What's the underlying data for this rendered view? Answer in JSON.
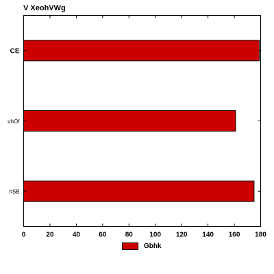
{
  "chart_data": {
    "type": "bar",
    "orientation": "horizontal",
    "title": "V XeohVWg",
    "categories": [
      "CE",
      "uhOf",
      "hSB"
    ],
    "series": [
      {
        "name": "Gbhk",
        "values": [
          179,
          161,
          175
        ],
        "color": "#cc0000"
      }
    ],
    "xlim": [
      0,
      180
    ],
    "xticks": [
      0,
      20,
      40,
      60,
      80,
      100,
      120,
      140,
      160,
      180
    ],
    "grid": false,
    "legend_position": "bottom-center"
  }
}
